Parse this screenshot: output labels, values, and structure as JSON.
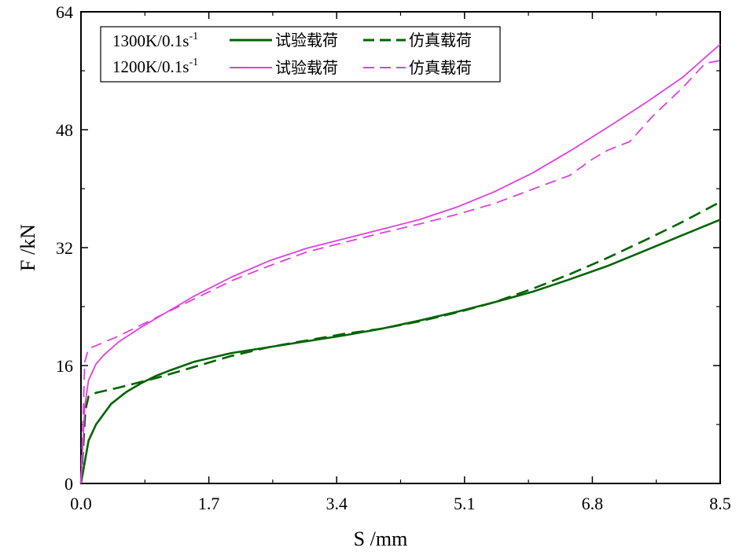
{
  "chart_data": {
    "type": "line",
    "title": "",
    "xlabel": "S /mm",
    "ylabel": "F /kN",
    "xlim": [
      0,
      8.5
    ],
    "ylim": [
      0,
      64
    ],
    "x_ticks": [
      "0.0",
      "1.7",
      "3.4",
      "5.1",
      "6.8",
      "8.5"
    ],
    "y_ticks": [
      "0",
      "16",
      "32",
      "48",
      "64"
    ],
    "legend": {
      "placement": "top-left",
      "rows": [
        {
          "condition": "1300K/0.1s",
          "exponent": "-1",
          "entries": [
            "试验载荷",
            "仿真载荷"
          ]
        },
        {
          "condition": "1200K/0.1s",
          "exponent": "-1",
          "entries": [
            "试验载荷",
            "仿真载荷"
          ]
        }
      ]
    },
    "series": [
      {
        "condition": "1300K/0.1s",
        "kind": "试验载荷",
        "color": "#006400",
        "dash": "solid",
        "x": [
          0,
          0.1,
          0.2,
          0.4,
          0.6,
          0.8,
          1.0,
          1.2,
          1.5,
          2.0,
          2.5,
          3.0,
          3.5,
          4.0,
          4.5,
          5.0,
          5.5,
          6.0,
          6.5,
          7.0,
          7.5,
          8.0,
          8.5
        ],
        "y": [
          0,
          5.8,
          8.0,
          10.8,
          12.4,
          13.6,
          14.6,
          15.4,
          16.5,
          17.7,
          18.5,
          19.3,
          20.1,
          21.0,
          22.1,
          23.3,
          24.6,
          26.0,
          27.7,
          29.5,
          31.6,
          33.7,
          35.8
        ]
      },
      {
        "condition": "1300K/0.1s",
        "kind": "仿真载荷",
        "color": "#006400",
        "dash": "dashed",
        "x": [
          0,
          0.03,
          0.06,
          0.1,
          0.2,
          0.5,
          1.0,
          1.5,
          2.0,
          2.5,
          3.0,
          3.5,
          4.0,
          4.5,
          5.0,
          5.5,
          6.0,
          6.5,
          7.0,
          7.5,
          8.0,
          8.5
        ],
        "y": [
          0,
          5.0,
          10.0,
          11.8,
          12.3,
          13.0,
          14.3,
          15.8,
          17.3,
          18.5,
          19.4,
          20.3,
          21.0,
          22.0,
          23.2,
          24.6,
          26.4,
          28.4,
          30.6,
          33.0,
          35.5,
          38.2
        ]
      },
      {
        "condition": "1200K/0.1s",
        "kind": "试验载荷",
        "color": "#e040e0",
        "dash": "solid",
        "x": [
          0,
          0.05,
          0.1,
          0.2,
          0.3,
          0.5,
          0.8,
          1.0,
          1.5,
          2.0,
          2.5,
          3.0,
          3.5,
          4.0,
          4.5,
          5.0,
          5.5,
          6.0,
          6.5,
          7.0,
          7.5,
          8.0,
          8.5
        ],
        "y": [
          0,
          10.5,
          14.0,
          16.2,
          17.4,
          19.2,
          21.2,
          22.4,
          25.4,
          28.0,
          30.2,
          31.9,
          33.2,
          34.5,
          35.8,
          37.5,
          39.6,
          42.1,
          45.1,
          48.3,
          51.6,
          55.1,
          59.6
        ]
      },
      {
        "condition": "1200K/0.1s",
        "kind": "仿真载荷",
        "color": "#e040e0",
        "dash": "dashed",
        "x": [
          0,
          0.05,
          0.1,
          0.2,
          0.5,
          1.0,
          1.5,
          2.0,
          2.5,
          3.0,
          3.5,
          4.0,
          4.5,
          5.0,
          5.5,
          6.0,
          6.5,
          6.8,
          7.0,
          7.3,
          7.6,
          8.0,
          8.3,
          8.5
        ],
        "y": [
          0,
          16.5,
          18.3,
          18.7,
          20.0,
          22.5,
          25.0,
          27.5,
          29.5,
          31.4,
          32.7,
          34.0,
          35.2,
          36.5,
          38.0,
          39.9,
          41.8,
          44.0,
          45.2,
          46.4,
          49.8,
          53.7,
          57.0,
          57.4
        ]
      }
    ],
    "grid": false
  }
}
